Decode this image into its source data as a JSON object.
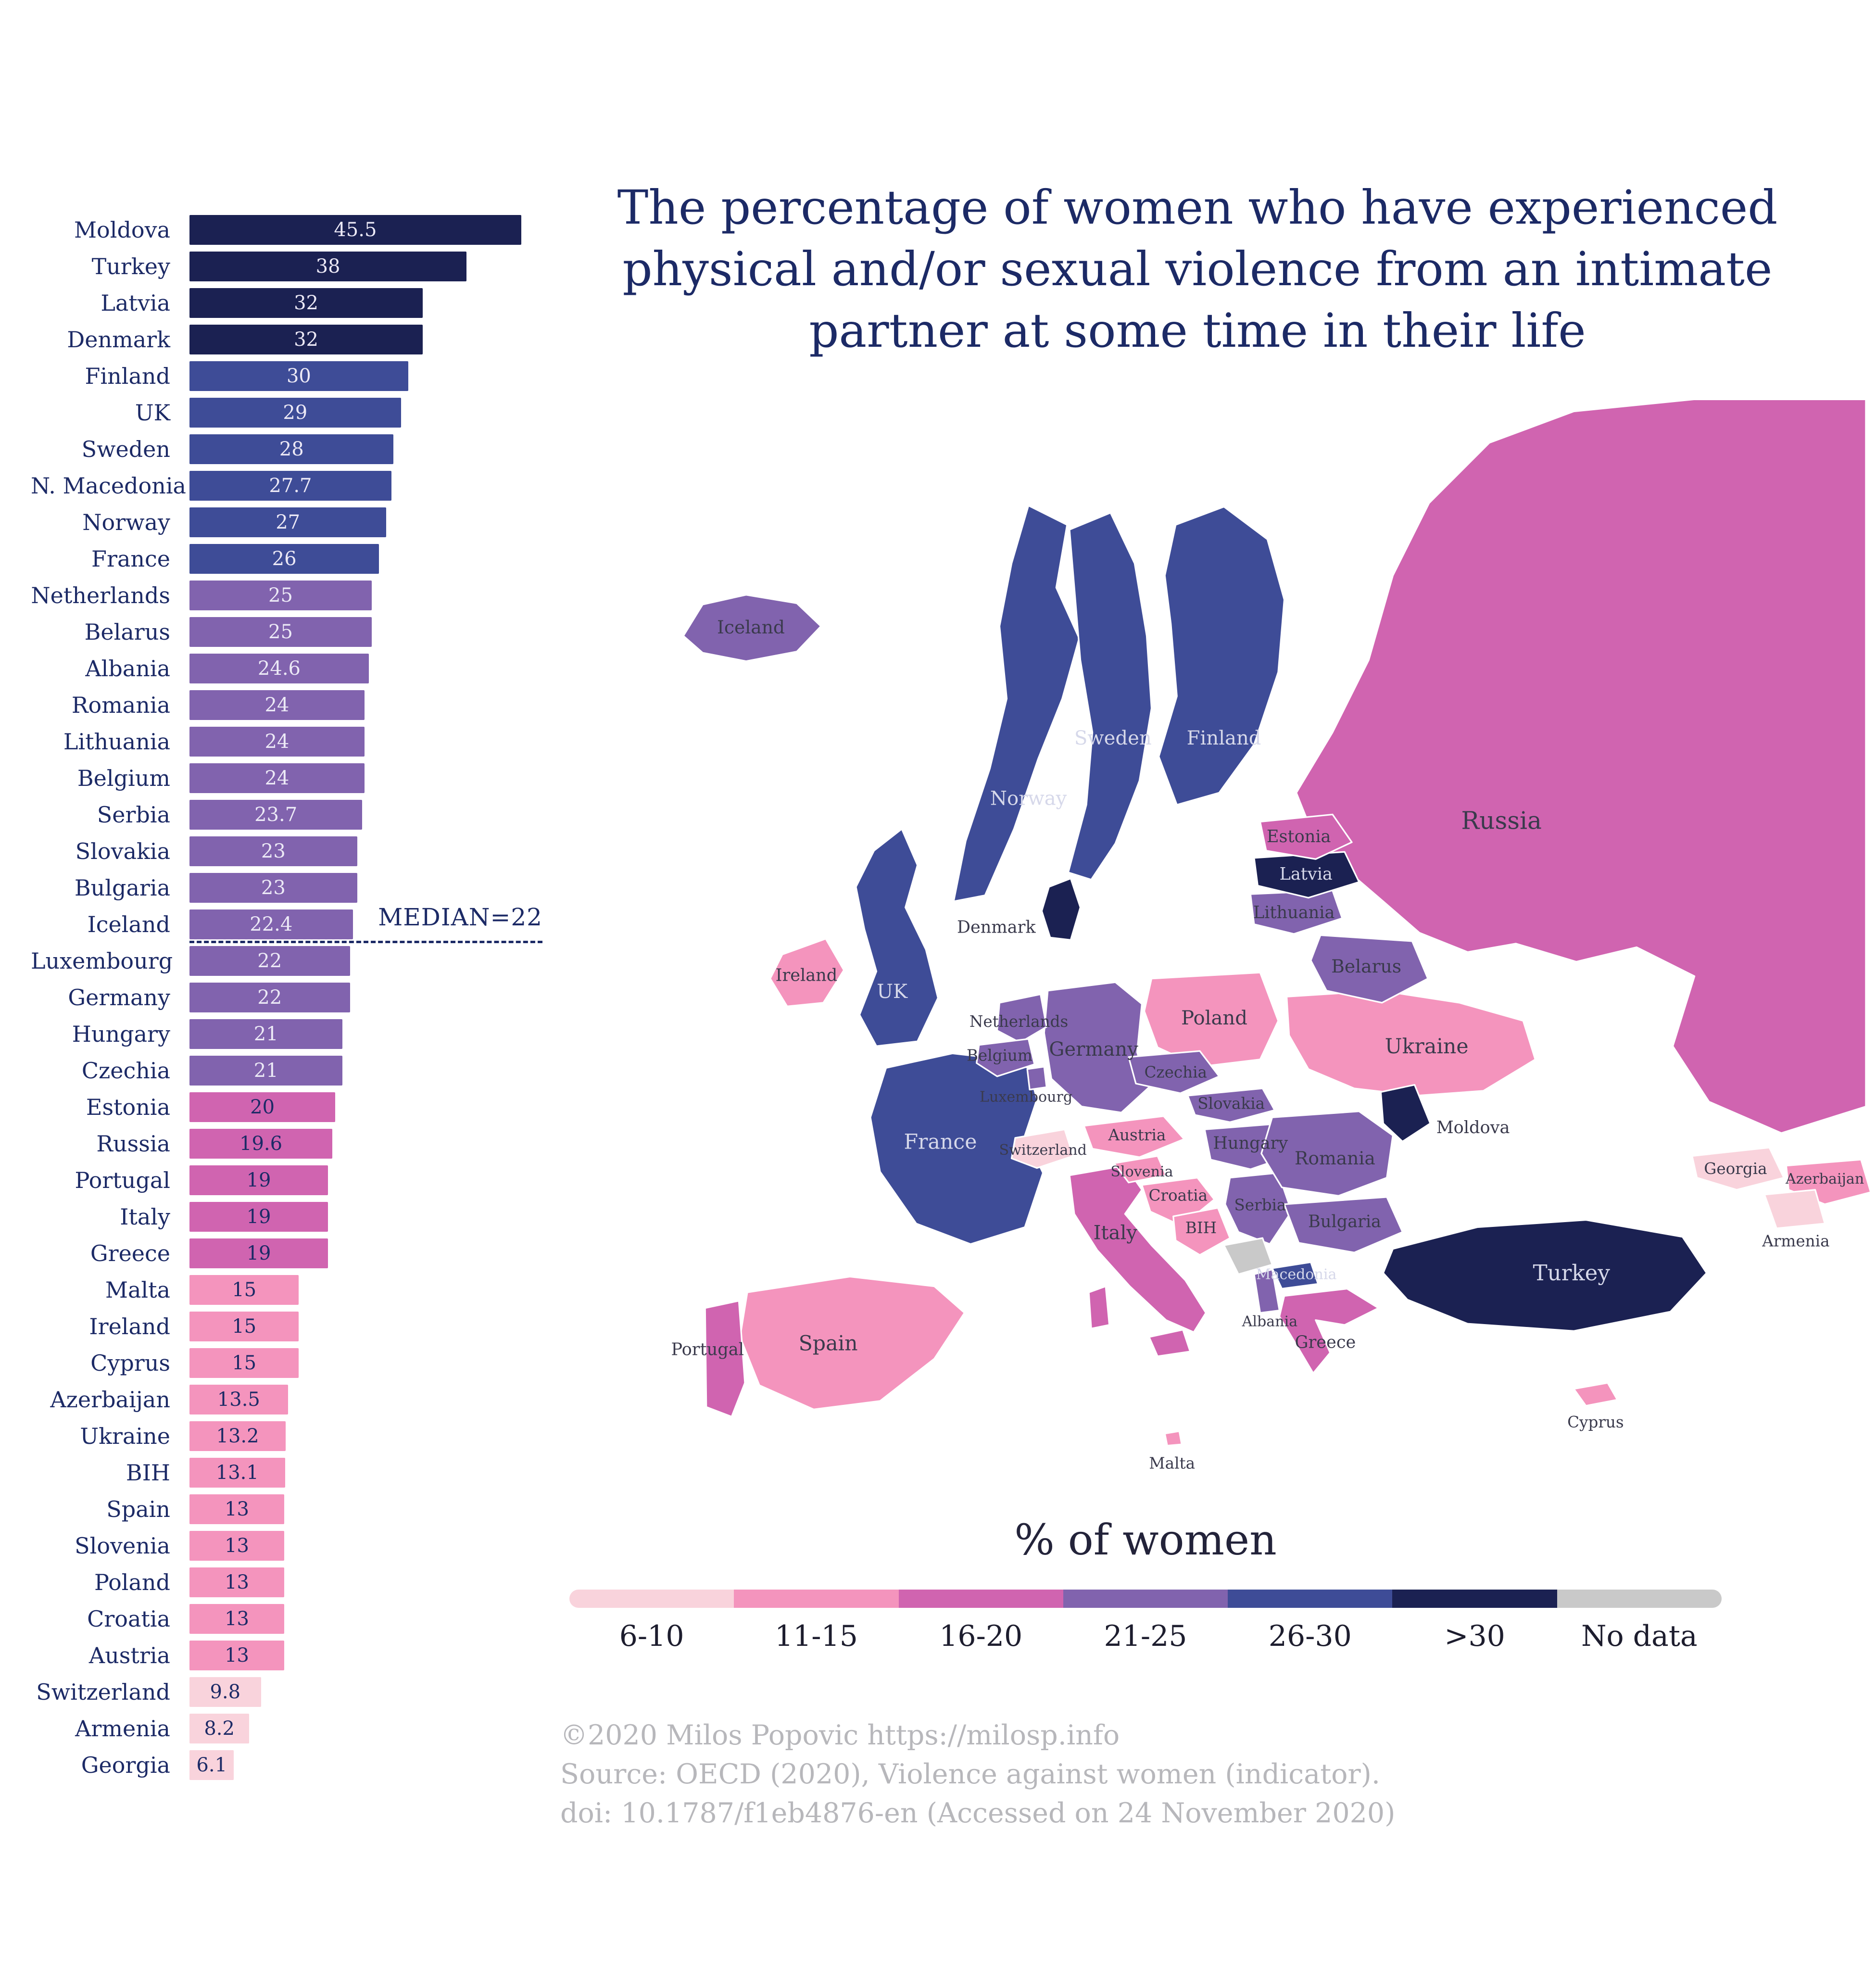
{
  "title": "The percentage of women who have experienced physical and/or sexual violence from an intimate partner at some time in their life",
  "legend": {
    "title": "% of women",
    "items": [
      "6-10",
      "11-15",
      "16-20",
      "21-25",
      "26-30",
      ">30",
      "No data"
    ]
  },
  "credits": [
    "©2020 Milos Popovic https://milosp.info",
    "Source: OECD (2020), Violence against women (indicator).",
    "doi: 10.1787/f1eb4876-en (Accessed on 24 November 2020)"
  ],
  "chart_data": [
    {
      "type": "bar",
      "orientation": "horizontal",
      "title": "The percentage of women who have experienced physical and/or sexual violence from an intimate partner at some time in their life",
      "categories": [
        "Moldova",
        "Turkey",
        "Latvia",
        "Denmark",
        "Finland",
        "UK",
        "Sweden",
        "N. Macedonia",
        "Norway",
        "France",
        "Netherlands",
        "Belarus",
        "Albania",
        "Romania",
        "Lithuania",
        "Belgium",
        "Serbia",
        "Slovakia",
        "Bulgaria",
        "Iceland",
        "Luxembourg",
        "Germany",
        "Hungary",
        "Czechia",
        "Estonia",
        "Russia",
        "Portugal",
        "Italy",
        "Greece",
        "Malta",
        "Ireland",
        "Cyprus",
        "Azerbaijan",
        "Ukraine",
        "BIH",
        "Spain",
        "Slovenia",
        "Poland",
        "Croatia",
        "Austria",
        "Switzerland",
        "Armenia",
        "Georgia"
      ],
      "values": [
        45.5,
        38,
        32,
        32,
        30,
        29,
        28,
        27.7,
        27,
        26,
        25,
        25,
        24.6,
        24,
        24,
        24,
        23.7,
        23,
        23,
        22.4,
        22,
        22,
        21,
        21,
        20,
        19.6,
        19,
        19,
        19,
        15,
        15,
        15,
        13.5,
        13.2,
        13.1,
        13,
        13,
        13,
        13,
        13,
        9.8,
        8.2,
        6.1
      ],
      "xlim": [
        0,
        46
      ],
      "median": {
        "label": "MEDIAN=22",
        "value": 22,
        "after_category": "Iceland"
      },
      "bins": [
        {
          "label": "6-10",
          "color": "#f9d3dc",
          "min": 6,
          "max": 10
        },
        {
          "label": "11-15",
          "color": "#f494bd",
          "min": 11,
          "max": 15
        },
        {
          "label": "16-20",
          "color": "#d064b0",
          "min": 16,
          "max": 20
        },
        {
          "label": "21-25",
          "color": "#8163ae",
          "min": 21,
          "max": 25
        },
        {
          "label": "26-30",
          "color": "#3e4c97",
          "min": 26,
          "max": 30
        },
        {
          "label": ">30",
          "color": "#1b2152",
          "min": 31,
          "max": 100
        },
        {
          "label": "No data",
          "color": "#c9c9c9"
        }
      ]
    },
    {
      "type": "choropleth",
      "region": "Europe",
      "legend_title": "% of women",
      "countries": [
        {
          "id": "russia",
          "label": "Russia",
          "bin": "16-20"
        },
        {
          "id": "norway",
          "label": "Norway",
          "bin": "26-30"
        },
        {
          "id": "sweden",
          "label": "Sweden",
          "bin": "26-30"
        },
        {
          "id": "finland",
          "label": "Finland",
          "bin": "26-30"
        },
        {
          "id": "ukraine",
          "label": "Ukraine",
          "bin": "11-15"
        },
        {
          "id": "france",
          "label": "France",
          "bin": "26-30"
        },
        {
          "id": "spain",
          "label": "Spain",
          "bin": "11-15"
        },
        {
          "id": "germany",
          "label": "Germany",
          "bin": "21-25"
        },
        {
          "id": "poland",
          "label": "Poland",
          "bin": "11-15"
        },
        {
          "id": "turkey",
          "label": "Turkey",
          "bin": ">30"
        },
        {
          "id": "italy",
          "label": "Italy",
          "bin": "16-20"
        },
        {
          "id": "uk",
          "label": "UK",
          "bin": "26-30"
        },
        {
          "id": "ireland",
          "label": "Ireland",
          "bin": "11-15"
        },
        {
          "id": "iceland",
          "label": "Iceland",
          "bin": "21-25"
        },
        {
          "id": "portugal",
          "label": "Portugal",
          "bin": "16-20"
        },
        {
          "id": "belarus",
          "label": "Belarus",
          "bin": "21-25"
        },
        {
          "id": "lithuania",
          "label": "Lithuania",
          "bin": "21-25"
        },
        {
          "id": "latvia",
          "label": "Latvia",
          "bin": ">30"
        },
        {
          "id": "estonia",
          "label": "Estonia",
          "bin": "16-20"
        },
        {
          "id": "denmark",
          "label": "Denmark",
          "bin": ">30"
        },
        {
          "id": "netherlands",
          "label": "Netherlands",
          "bin": "21-25"
        },
        {
          "id": "belgium",
          "label": "Belgium",
          "bin": "21-25"
        },
        {
          "id": "luxembourg",
          "label": "Luxembourg",
          "bin": "21-25"
        },
        {
          "id": "czechia",
          "label": "Czechia",
          "bin": "21-25"
        },
        {
          "id": "slovakia",
          "label": "Slovakia",
          "bin": "21-25"
        },
        {
          "id": "austria",
          "label": "Austria",
          "bin": "11-15"
        },
        {
          "id": "switzerland",
          "label": "Switzerland",
          "bin": "6-10"
        },
        {
          "id": "slovenia",
          "label": "Slovenia",
          "bin": "11-15"
        },
        {
          "id": "hungary",
          "label": "Hungary",
          "bin": "21-25"
        },
        {
          "id": "croatia",
          "label": "Croatia",
          "bin": "11-15"
        },
        {
          "id": "bih",
          "label": "BIH",
          "bin": "11-15"
        },
        {
          "id": "serbia",
          "label": "Serbia",
          "bin": "21-25"
        },
        {
          "id": "kosovo-montenegro",
          "label": "",
          "bin": "No data"
        },
        {
          "id": "bulgaria",
          "label": "Bulgaria",
          "bin": "21-25"
        },
        {
          "id": "romania",
          "label": "Romania",
          "bin": "21-25"
        },
        {
          "id": "moldova",
          "label": "Moldova",
          "bin": ">30"
        },
        {
          "id": "macedonia",
          "label": "Macedonia",
          "bin": "26-30"
        },
        {
          "id": "albania",
          "label": "Albania",
          "bin": "21-25"
        },
        {
          "id": "greece",
          "label": "Greece",
          "bin": "16-20"
        },
        {
          "id": "georgia",
          "label": "Georgia",
          "bin": "6-10"
        },
        {
          "id": "azerbaijan",
          "label": "Azerbaijan",
          "bin": "11-15"
        },
        {
          "id": "armenia",
          "label": "Armenia",
          "bin": "6-10"
        },
        {
          "id": "cyprus",
          "label": "Cyprus",
          "bin": "11-15"
        },
        {
          "id": "malta",
          "label": "Malta",
          "bin": "11-15"
        }
      ]
    }
  ]
}
